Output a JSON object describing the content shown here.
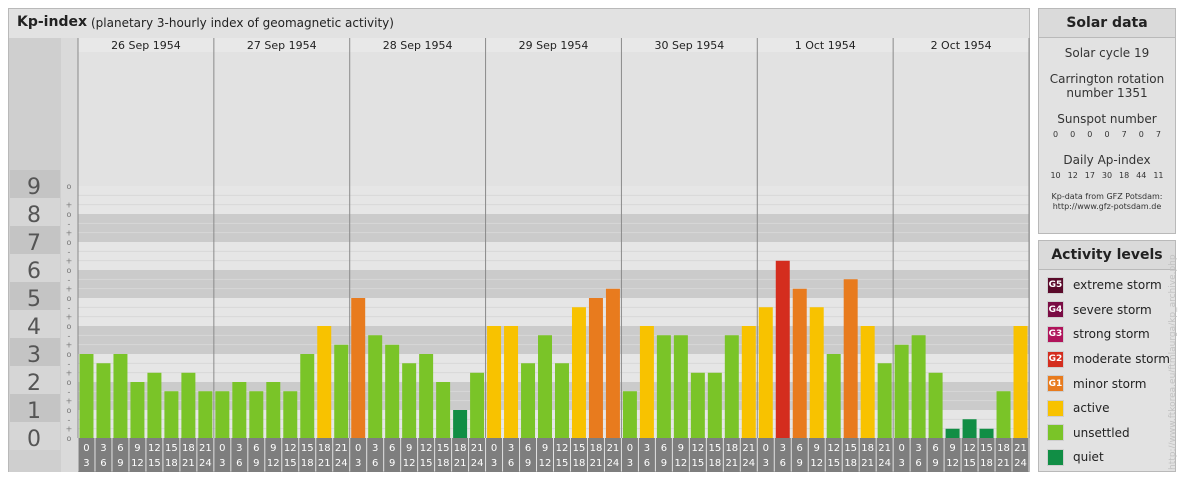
{
  "header": {
    "title": "Kp-index",
    "subtitle": "(planetary 3-hourly index of geomagnetic activity)"
  },
  "solar": {
    "heading": "Solar data",
    "cycle": "Solar cycle 19",
    "carrington_1": "Carrington rotation",
    "carrington_2": "number 1351",
    "sunspot_heading": "Sunspot number",
    "sunspot_values": [
      "0",
      "0",
      "0",
      "0",
      "7",
      "0",
      "7"
    ],
    "ap_heading": "Daily Ap-index",
    "ap_values": [
      "10",
      "12",
      "17",
      "30",
      "18",
      "44",
      "11"
    ],
    "source_1": "Kp-data from GFZ Potsdam:",
    "source_2": "http://www.gfz-potsdam.de"
  },
  "legend": {
    "heading": "Activity levels",
    "items": [
      {
        "badge": "G5",
        "label": "extreme storm",
        "color": "#5a0a2a"
      },
      {
        "badge": "G4",
        "label": "severe storm",
        "color": "#7a0c44"
      },
      {
        "badge": "G3",
        "label": "strong storm",
        "color": "#b0135a"
      },
      {
        "badge": "G2",
        "label": "moderate storm",
        "color": "#d42d1e"
      },
      {
        "badge": "G1",
        "label": "minor storm",
        "color": "#e87b1e"
      },
      {
        "badge": "",
        "label": "active",
        "color": "#f8c200"
      },
      {
        "badge": "",
        "label": "unsettled",
        "color": "#7ac428"
      },
      {
        "badge": "",
        "label": "quiet",
        "color": "#118e45"
      }
    ]
  },
  "credit": "http://www.ftkorea.eu/ftmlaurga/kp_archive.php",
  "chart_data": {
    "type": "bar",
    "y_range": [
      0,
      9
    ],
    "y_ticks": [
      "0",
      "1",
      "2",
      "3",
      "4",
      "5",
      "6",
      "7",
      "8",
      "9"
    ],
    "sub_ticks": [
      "+",
      "o",
      "-"
    ],
    "days": [
      "26 Sep 1954",
      "27 Sep 1954",
      "28 Sep 1954",
      "29 Sep 1954",
      "30 Sep 1954",
      "1 Oct 1954",
      "2 Oct 1954"
    ],
    "interval_labels": [
      [
        "0",
        "3"
      ],
      [
        "3",
        "6"
      ],
      [
        "6",
        "9"
      ],
      [
        "9",
        "12"
      ],
      [
        "12",
        "15"
      ],
      [
        "15",
        "18"
      ],
      [
        "18",
        "21"
      ],
      [
        "21",
        "24"
      ]
    ],
    "values": [
      3.0,
      2.67,
      3.0,
      2.0,
      2.33,
      1.67,
      2.33,
      1.67,
      1.67,
      2.0,
      1.67,
      2.0,
      1.67,
      3.0,
      4.0,
      3.33,
      5.0,
      3.67,
      3.33,
      2.67,
      3.0,
      2.0,
      1.0,
      2.33,
      4.0,
      4.0,
      2.67,
      3.67,
      2.67,
      4.67,
      5.0,
      5.33,
      1.67,
      4.0,
      3.67,
      3.67,
      2.33,
      2.33,
      3.67,
      4.0,
      4.67,
      6.33,
      5.33,
      4.67,
      3.0,
      5.67,
      4.0,
      2.67,
      3.33,
      3.67,
      2.33,
      0.33,
      0.67,
      0.33,
      1.67,
      4.0
    ],
    "colors": {
      "quiet": "#118e45",
      "unsettled": "#7ac428",
      "active": "#f8c200",
      "g1": "#e87b1e",
      "g2": "#d42d1e"
    }
  }
}
